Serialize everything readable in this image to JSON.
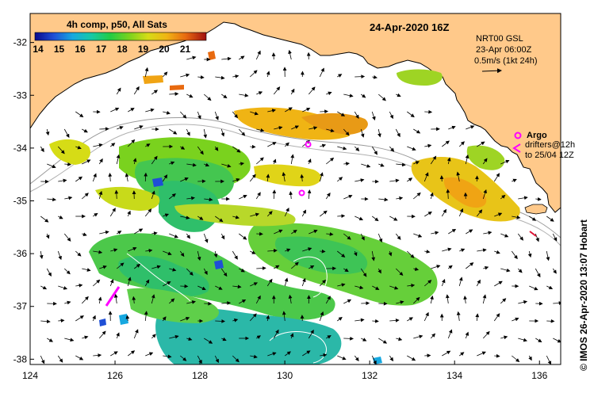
{
  "map": {
    "title": "24-Apr-2020 16Z",
    "colorbar": {
      "title": "4h comp, p50, All Sats",
      "tick_labels": [
        "14",
        "15",
        "16",
        "17",
        "18",
        "19",
        "20",
        "21"
      ],
      "colors": [
        "#0a0a8c",
        "#1f4fd6",
        "#16a8e0",
        "#16c9a6",
        "#22cc44",
        "#7ad21e",
        "#d6dc16",
        "#f0b414",
        "#e86a10",
        "#a01010"
      ]
    },
    "current_info": {
      "line1": "NRT00 GSL",
      "line2": "23-Apr 06:00Z",
      "line3": "0.5m/s (1kt 24h)"
    },
    "legend": {
      "argo_label": "Argo",
      "drifters_label": "drifters@12h",
      "drifters_label2": "to 25/04 12Z"
    },
    "credit": "© IMOS 26-Apr-2020 13:07 Hobart",
    "x_ticks": [
      "124",
      "126",
      "128",
      "130",
      "132",
      "134",
      "136"
    ],
    "y_ticks": [
      "-32",
      "-33",
      "-34",
      "-35",
      "-36",
      "-37",
      "-38"
    ],
    "land_color": "#ffc98a",
    "argo_color": "#ff00ff",
    "argo_floats": [
      {
        "lon": 130.55,
        "lat": -33.93
      },
      {
        "lon": 130.4,
        "lat": -34.85
      }
    ]
  }
}
